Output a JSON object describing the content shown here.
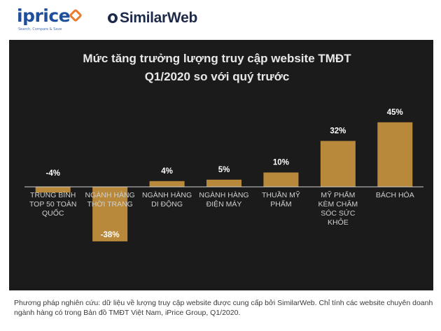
{
  "logos": {
    "iprice_name": "iprice",
    "iprice_tagline": "Search, Compare & Save",
    "similarweb_name": "SimilarWeb",
    "iprice_mark_color": "#e97c2d",
    "brand_color": "#1f4e9a"
  },
  "chart_data": {
    "type": "bar",
    "title": "Mức tăng trưởng lượng truy cập website TMĐT",
    "subtitle": "Q1/2020 so với quý trước",
    "categories": [
      "TRUNG BÌNH TOP 50 TOÀN QUỐC",
      "NGÀNH HÀNG THỜI TRANG",
      "NGÀNH HÀNG DI ĐỘNG",
      "NGÀNH HÀNG ĐIỆN MÁY",
      "THUẦN MỸ PHẨM",
      "MỸ PHẨM KÈM CHĂM SÓC SỨC KHỎE",
      "BÁCH HÓA"
    ],
    "category_lines": [
      [
        "TRUNG BÌNH",
        "TOP 50 TOÀN",
        "QUỐC"
      ],
      [
        "NGÀNH HÀNG",
        "THỜI TRANG"
      ],
      [
        "NGÀNH HÀNG",
        "DI ĐỘNG"
      ],
      [
        "NGÀNH HÀNG",
        "ĐIỆN MÁY"
      ],
      [
        "THUẦN MỸ",
        "PHẨM"
      ],
      [
        "MỸ PHẨM",
        "KÈM CHĂM",
        "SÓC SỨC",
        "KHỎE"
      ],
      [
        "BÁCH HÓA"
      ]
    ],
    "values": [
      -4,
      -38,
      4,
      5,
      10,
      32,
      45
    ],
    "labels": [
      "-4%",
      "-38%",
      "4%",
      "5%",
      "10%",
      "32%",
      "45%"
    ],
    "unit": "%",
    "xlabel": "",
    "ylabel": "",
    "ylim": [
      -40,
      47
    ],
    "grid": false,
    "legend": "none",
    "bar_color": "#b8893b",
    "background_color": "#1b1b1b",
    "text_color": "#ffffff",
    "axis_color": "#cfcfcf"
  },
  "footnote": "Phương pháp nghiên cứu: dữ liệu về lượng truy cập website được cung cấp bởi SimilarWeb. Chỉ tính các website chuyên doanh ngành hàng có trong Bản đồ TMĐT Việt Nam, iPrice Group, Q1/2020."
}
